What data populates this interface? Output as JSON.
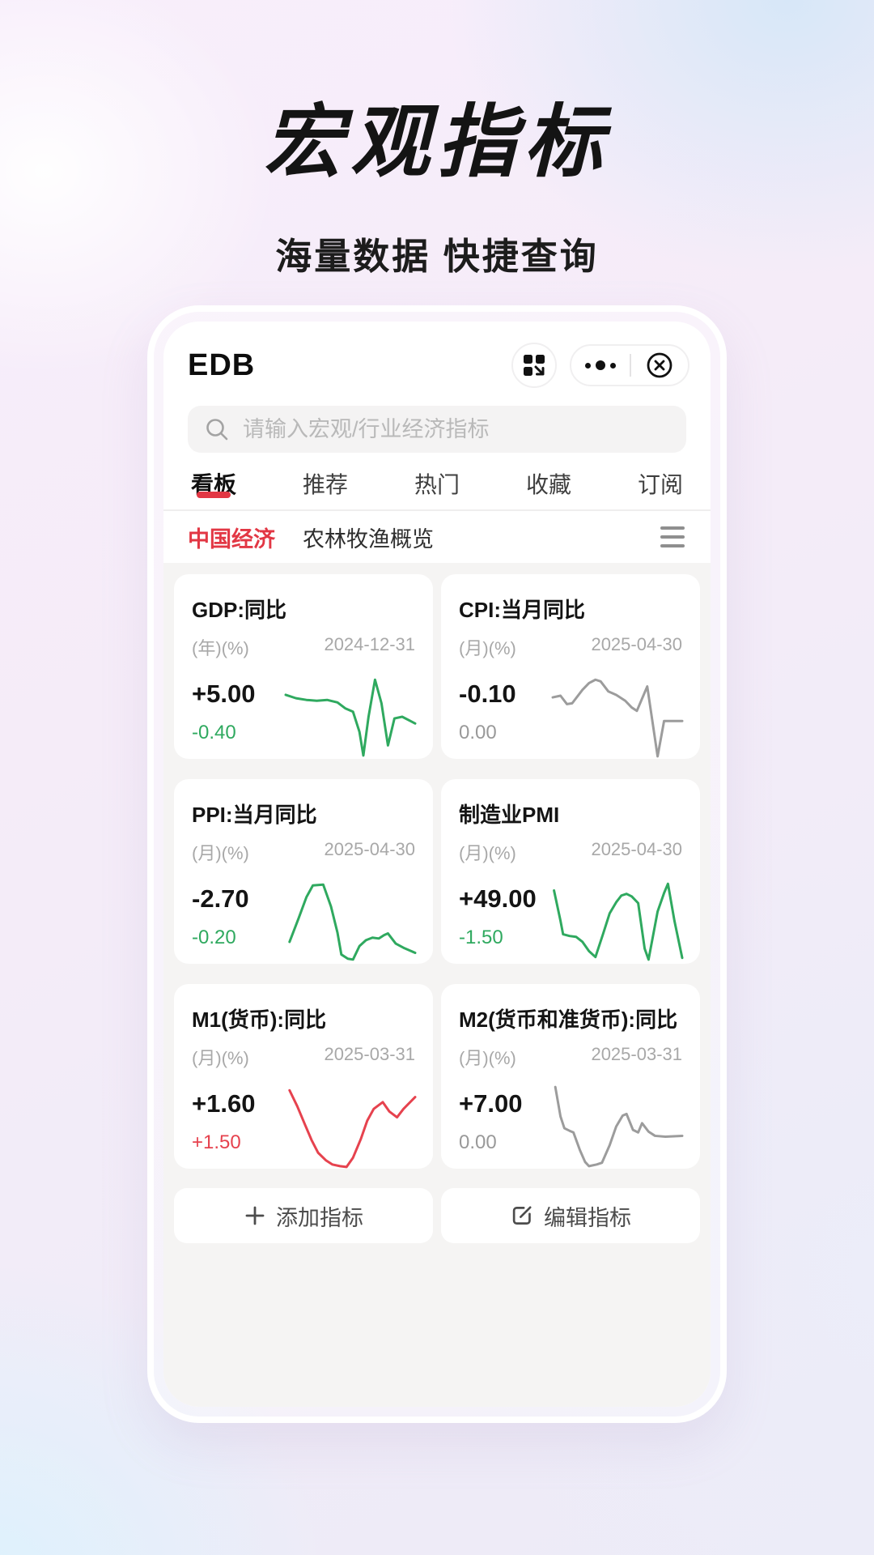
{
  "hero": {
    "title": "宏观指标",
    "subtitle": "海量数据 快捷查询"
  },
  "app": {
    "title": "EDB",
    "header_icons": [
      "grid-arrow-miniprogram",
      "more-dots",
      "close-circle"
    ],
    "search": {
      "placeholder": "请输入宏观/行业经济指标",
      "icon": "magnifier"
    },
    "tabs": [
      {
        "label": "看板",
        "active": true
      },
      {
        "label": "推荐",
        "active": false
      },
      {
        "label": "热门",
        "active": false
      },
      {
        "label": "收藏",
        "active": false
      },
      {
        "label": "订阅",
        "active": false
      }
    ],
    "categories": [
      {
        "label": "中国经济",
        "active": true
      },
      {
        "label": "农林牧渔概览",
        "active": false
      }
    ],
    "category_menu_icon": "hamburger",
    "cards": [
      {
        "title": "GDP:同比",
        "unit": "(年)(%)",
        "date": "2024-12-31",
        "value": "+5.00",
        "change": "-0.40",
        "change_tone": "green",
        "line_tone": "green",
        "points": [
          [
            0,
            24
          ],
          [
            8,
            28
          ],
          [
            16,
            30
          ],
          [
            24,
            31
          ],
          [
            32,
            30
          ],
          [
            40,
            33
          ],
          [
            46,
            40
          ],
          [
            52,
            44
          ],
          [
            57,
            68
          ],
          [
            60,
            96
          ],
          [
            64,
            50
          ],
          [
            69,
            6
          ],
          [
            74,
            34
          ],
          [
            79,
            84
          ],
          [
            84,
            52
          ],
          [
            90,
            50
          ],
          [
            100,
            58
          ]
        ]
      },
      {
        "title": "CPI:当月同比",
        "unit": "(月)(%)",
        "date": "2025-04-30",
        "value": "-0.10",
        "change": "0.00",
        "change_tone": "gray",
        "line_tone": "gray",
        "points": [
          [
            0,
            27
          ],
          [
            6,
            25
          ],
          [
            11,
            35
          ],
          [
            15,
            34
          ],
          [
            23,
            18
          ],
          [
            28,
            10
          ],
          [
            33,
            6
          ],
          [
            37,
            8
          ],
          [
            43,
            20
          ],
          [
            49,
            24
          ],
          [
            56,
            31
          ],
          [
            61,
            39
          ],
          [
            65,
            43
          ],
          [
            73,
            14
          ],
          [
            81,
            97
          ],
          [
            86,
            55
          ],
          [
            91,
            55
          ],
          [
            100,
            55
          ]
        ]
      },
      {
        "title": "PPI:当月同比",
        "unit": "(月)(%)",
        "date": "2025-04-30",
        "value": "-2.70",
        "change": "-0.20",
        "change_tone": "green",
        "line_tone": "green",
        "points": [
          [
            3,
            74
          ],
          [
            10,
            46
          ],
          [
            16,
            21
          ],
          [
            21,
            7
          ],
          [
            29,
            6
          ],
          [
            35,
            32
          ],
          [
            40,
            63
          ],
          [
            43,
            89
          ],
          [
            48,
            94
          ],
          [
            52,
            95
          ],
          [
            57,
            79
          ],
          [
            62,
            72
          ],
          [
            67,
            69
          ],
          [
            72,
            70
          ],
          [
            76,
            66
          ],
          [
            79,
            64
          ],
          [
            85,
            76
          ],
          [
            91,
            81
          ],
          [
            100,
            87
          ]
        ]
      },
      {
        "title": "制造业PMI",
        "unit": "(月)(%)",
        "date": "2025-04-30",
        "value": "+49.00",
        "change": "-1.50",
        "change_tone": "green",
        "line_tone": "green",
        "points": [
          [
            1,
            13
          ],
          [
            6,
            49
          ],
          [
            8,
            65
          ],
          [
            13,
            67
          ],
          [
            18,
            68
          ],
          [
            23,
            74
          ],
          [
            28,
            85
          ],
          [
            33,
            92
          ],
          [
            39,
            64
          ],
          [
            44,
            40
          ],
          [
            49,
            27
          ],
          [
            53,
            19
          ],
          [
            57,
            17
          ],
          [
            61,
            20
          ],
          [
            66,
            28
          ],
          [
            71,
            82
          ],
          [
            74,
            95
          ],
          [
            81,
            38
          ],
          [
            86,
            16
          ],
          [
            89,
            5
          ],
          [
            94,
            49
          ],
          [
            100,
            93
          ]
        ]
      },
      {
        "title": "M1(货币):同比",
        "unit": "(月)(%)",
        "date": "2025-03-31",
        "value": "+1.60",
        "change": "+1.50",
        "change_tone": "red",
        "line_tone": "red",
        "points": [
          [
            3,
            7
          ],
          [
            9,
            26
          ],
          [
            15,
            48
          ],
          [
            20,
            66
          ],
          [
            25,
            81
          ],
          [
            31,
            90
          ],
          [
            36,
            95
          ],
          [
            42,
            97
          ],
          [
            47,
            98
          ],
          [
            52,
            87
          ],
          [
            58,
            65
          ],
          [
            63,
            43
          ],
          [
            68,
            29
          ],
          [
            75,
            21
          ],
          [
            80,
            32
          ],
          [
            86,
            39
          ],
          [
            91,
            29
          ],
          [
            100,
            15
          ]
        ]
      },
      {
        "title": "M2(货币和准货币):同比",
        "unit": "(月)(%)",
        "date": "2025-03-31",
        "value": "+7.00",
        "change": "0.00",
        "change_tone": "gray",
        "line_tone": "gray",
        "points": [
          [
            2,
            3
          ],
          [
            6,
            38
          ],
          [
            9,
            52
          ],
          [
            13,
            55
          ],
          [
            16,
            57
          ],
          [
            21,
            78
          ],
          [
            25,
            92
          ],
          [
            28,
            97
          ],
          [
            34,
            95
          ],
          [
            38,
            93
          ],
          [
            44,
            72
          ],
          [
            49,
            50
          ],
          [
            54,
            37
          ],
          [
            57,
            35
          ],
          [
            62,
            54
          ],
          [
            66,
            57
          ],
          [
            69,
            46
          ],
          [
            74,
            56
          ],
          [
            79,
            61
          ],
          [
            87,
            62
          ],
          [
            100,
            61
          ]
        ]
      }
    ],
    "actions": {
      "add": "添加指标",
      "add_icon": "plus",
      "edit": "编辑指标",
      "edit_icon": "square-pen"
    }
  },
  "colors": {
    "accent": "#e23744",
    "green": "#2fa95f",
    "red": "#e6424e",
    "gray": "#9c9c9c"
  }
}
